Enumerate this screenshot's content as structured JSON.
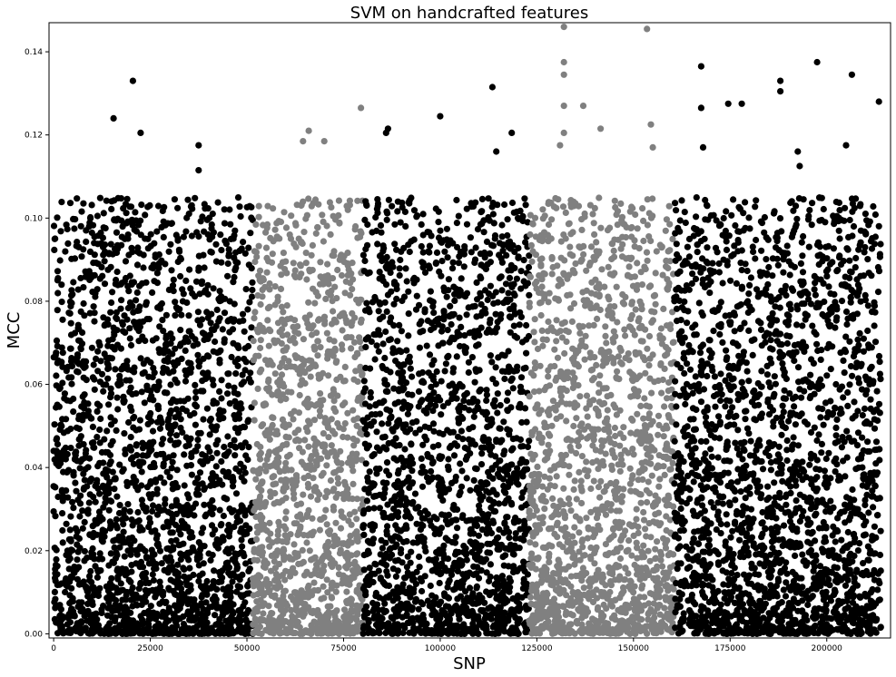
{
  "chart_data": {
    "type": "scatter",
    "title": "SVM on handcrafted features",
    "xlabel": "SNP",
    "ylabel": "MCC",
    "xlim": [
      -1200,
      216500
    ],
    "ylim": [
      -0.001,
      0.147
    ],
    "xticks": [
      0,
      25000,
      50000,
      75000,
      100000,
      125000,
      150000,
      175000,
      200000
    ],
    "xtick_labels": [
      "0",
      "25000",
      "50000",
      "75000",
      "100000",
      "125000",
      "150000",
      "175000",
      "200000"
    ],
    "yticks": [
      0.0,
      0.02,
      0.04,
      0.06,
      0.08,
      0.1,
      0.12,
      0.14
    ],
    "ytick_labels": [
      "0.00",
      "0.02",
      "0.04",
      "0.06",
      "0.08",
      "0.10",
      "0.12",
      "0.14"
    ],
    "grid": false,
    "legend": "none",
    "colors": {
      "dark": "#000000",
      "light": "#808080"
    },
    "segments": [
      {
        "x_start": 0,
        "x_end": 51500,
        "color": "dark"
      },
      {
        "x_start": 51500,
        "x_end": 80000,
        "color": "light"
      },
      {
        "x_start": 80000,
        "x_end": 123000,
        "color": "dark"
      },
      {
        "x_start": 123000,
        "x_end": 160500,
        "color": "light"
      },
      {
        "x_start": 160500,
        "x_end": 214000,
        "color": "dark"
      }
    ],
    "outliers": [
      {
        "x": 20500,
        "y": 0.133
      },
      {
        "x": 15500,
        "y": 0.124
      },
      {
        "x": 22500,
        "y": 0.1205
      },
      {
        "x": 37500,
        "y": 0.1175
      },
      {
        "x": 37500,
        "y": 0.1115
      },
      {
        "x": 79500,
        "y": 0.1265
      },
      {
        "x": 86500,
        "y": 0.1215
      },
      {
        "x": 86000,
        "y": 0.1205
      },
      {
        "x": 100000,
        "y": 0.1245
      },
      {
        "x": 113500,
        "y": 0.1315
      },
      {
        "x": 118500,
        "y": 0.1205
      },
      {
        "x": 114500,
        "y": 0.116
      },
      {
        "x": 132000,
        "y": 0.146
      },
      {
        "x": 132000,
        "y": 0.1375
      },
      {
        "x": 132000,
        "y": 0.1345
      },
      {
        "x": 132000,
        "y": 0.127
      },
      {
        "x": 132000,
        "y": 0.1205
      },
      {
        "x": 137000,
        "y": 0.127
      },
      {
        "x": 153500,
        "y": 0.1455
      },
      {
        "x": 154500,
        "y": 0.1225
      },
      {
        "x": 155000,
        "y": 0.117
      },
      {
        "x": 167500,
        "y": 0.1365
      },
      {
        "x": 167500,
        "y": 0.1265
      },
      {
        "x": 168000,
        "y": 0.117
      },
      {
        "x": 174500,
        "y": 0.1275
      },
      {
        "x": 178000,
        "y": 0.1275
      },
      {
        "x": 188000,
        "y": 0.133
      },
      {
        "x": 188000,
        "y": 0.1305
      },
      {
        "x": 197500,
        "y": 0.1375
      },
      {
        "x": 192500,
        "y": 0.116
      },
      {
        "x": 193000,
        "y": 0.1125
      },
      {
        "x": 205000,
        "y": 0.1175
      },
      {
        "x": 206500,
        "y": 0.1345
      },
      {
        "x": 213500,
        "y": 0.128
      },
      {
        "x": 66000,
        "y": 0.121
      },
      {
        "x": 64500,
        "y": 0.1185
      },
      {
        "x": 70000,
        "y": 0.1185
      },
      {
        "x": 141500,
        "y": 0.1215
      },
      {
        "x": 131000,
        "y": 0.1175
      }
    ],
    "n_points_approx": 9000
  }
}
